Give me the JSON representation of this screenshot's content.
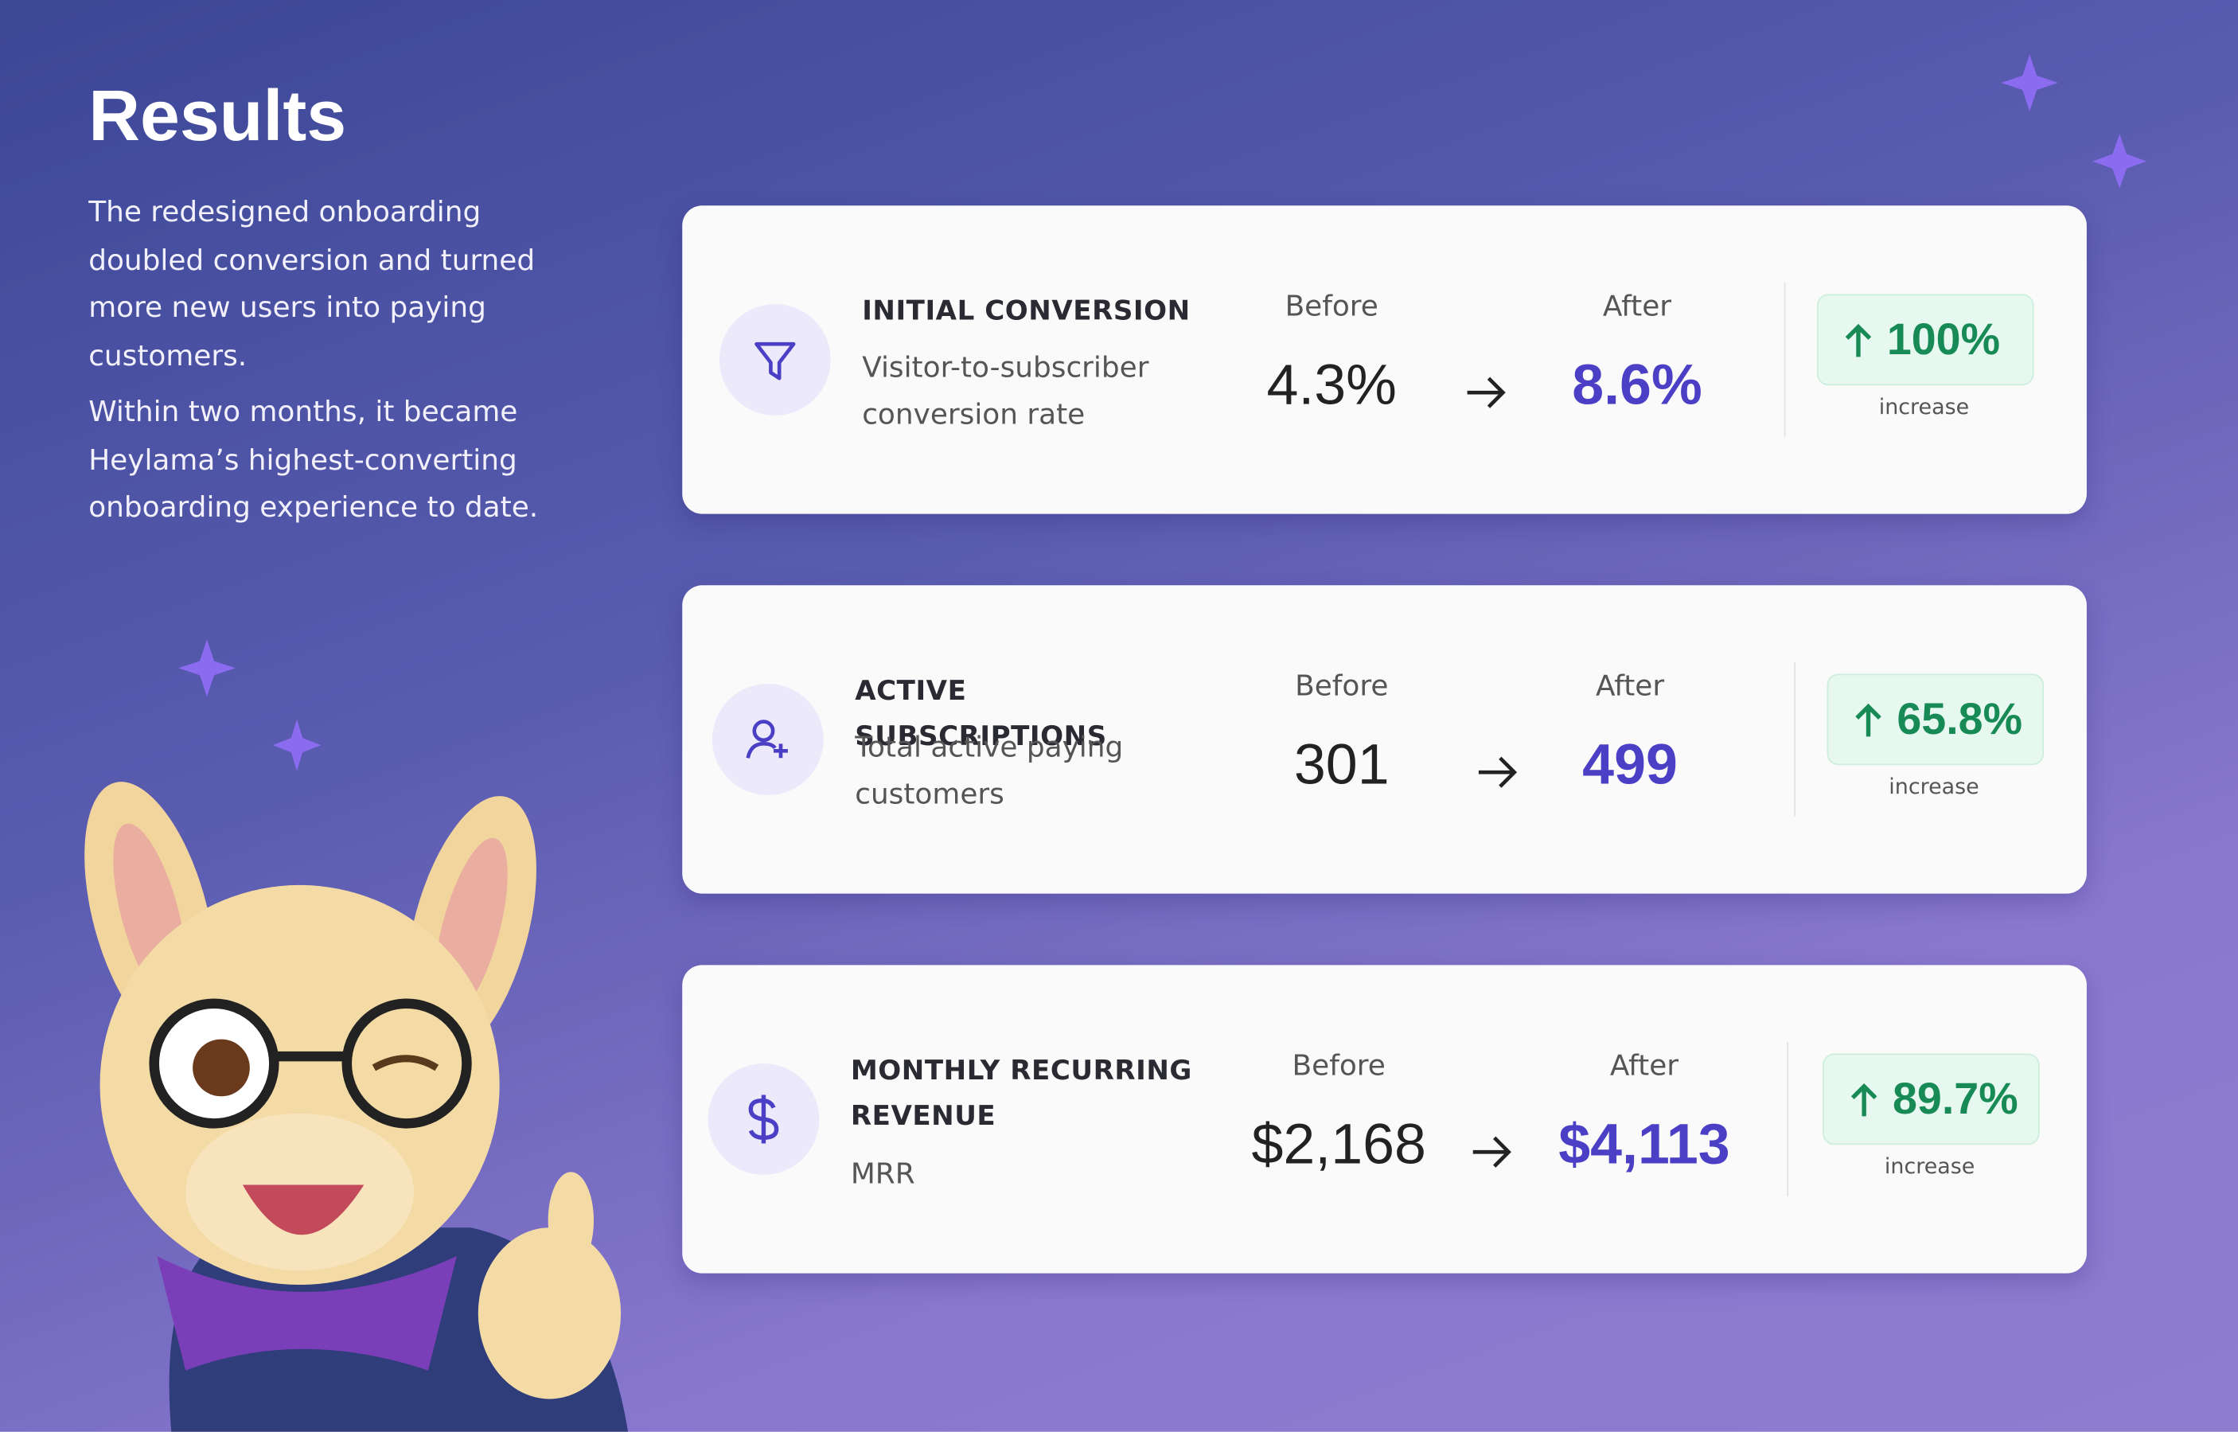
{
  "header": {
    "title": "Results"
  },
  "intro": {
    "paragraphs": [
      "The redesigned onboarding doubled conversion and turned more new users into paying customers.",
      "Within two months, it became Heylama’s highest-converting onboarding experience to date."
    ]
  },
  "metrics": [
    {
      "title": "INITIAL CONVERSION",
      "subtitle": "Visitor-to-subscriber conversion rate",
      "before_label": "Before",
      "before": "4.3%",
      "after_label": "After",
      "after": "8.6%",
      "change": "100%",
      "change_label": "increase"
    },
    {
      "title": "ACTIVE SUBSCRIPTIONS",
      "subtitle": "Total active paying customers",
      "before_label": "Before",
      "before": "301",
      "after_label": "After",
      "after": "499",
      "change": "65.8%",
      "change_label": "increase"
    },
    {
      "title": "MONTHLY RECURRING REVENUE",
      "subtitle": "MRR",
      "before_label": "Before",
      "before": "$2,168",
      "after_label": "After",
      "after": "$4,113",
      "change": "89.7%",
      "change_label": "increase"
    }
  ]
}
